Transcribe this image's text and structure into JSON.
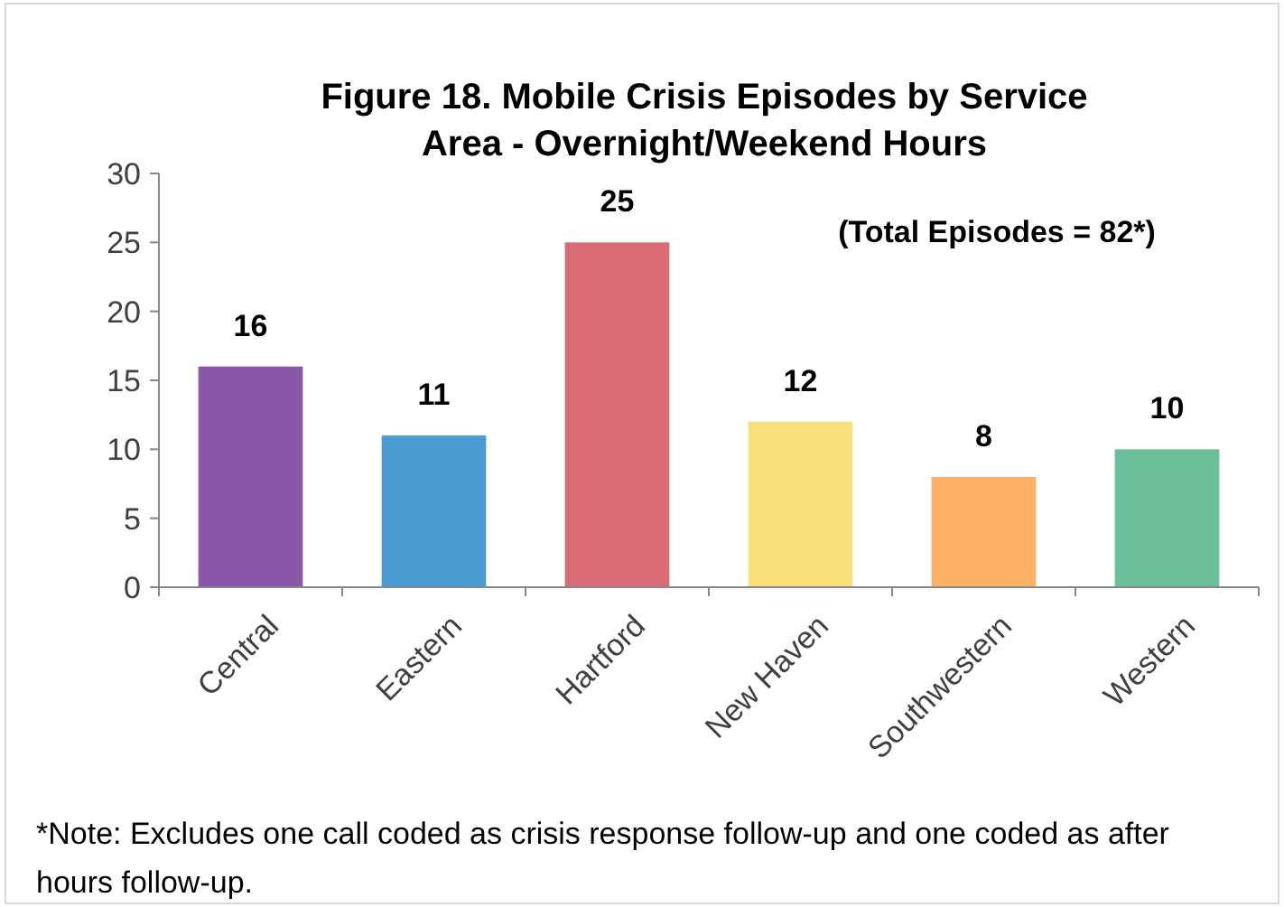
{
  "chart_data": {
    "type": "bar",
    "title": "Figure 18. Mobile Crisis Episodes by Service Area - Overnight/Weekend Hours",
    "categories": [
      "Central",
      "Eastern",
      "Hartford",
      "New Haven",
      "Southwestern",
      "Western"
    ],
    "values": [
      16,
      11,
      25,
      12,
      8,
      10
    ],
    "colors": [
      "#8b55a8",
      "#4a9bd1",
      "#d96b74",
      "#f9e07b",
      "#fdb068",
      "#6cbf9b"
    ],
    "ylim": [
      0,
      30
    ],
    "yticks": [
      0,
      5,
      10,
      15,
      20,
      25,
      30
    ],
    "grid": false,
    "data_labels": true,
    "annotations": [
      "(Total Episodes = 82*)",
      "*Note: Excludes one call coded as crisis response follow-up and one coded as after hours follow-up."
    ]
  }
}
